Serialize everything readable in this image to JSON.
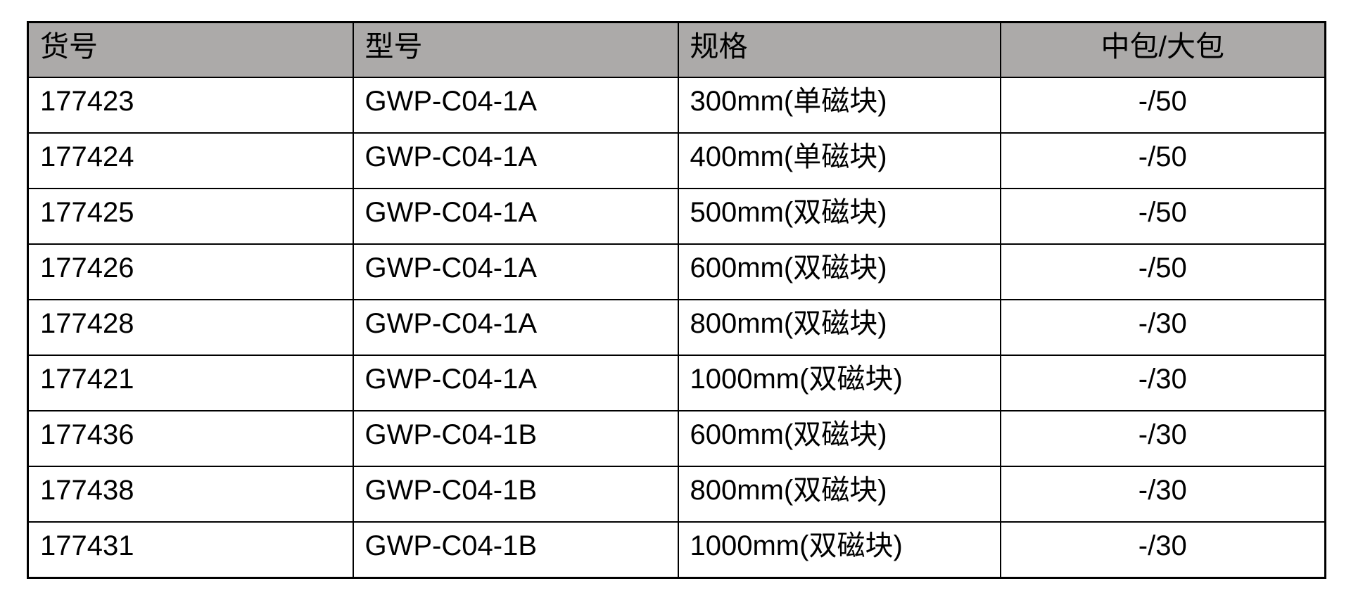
{
  "table": {
    "column_keys": [
      "item-no",
      "model",
      "spec",
      "pack"
    ],
    "headers": [
      "货号",
      "型号",
      "规格",
      "中包/大包"
    ],
    "rows": [
      [
        "177423",
        "GWP-C04-1A",
        "300mm(单磁块)",
        "-/50"
      ],
      [
        "177424",
        "GWP-C04-1A",
        "400mm(单磁块)",
        "-/50"
      ],
      [
        "177425",
        "GWP-C04-1A",
        "500mm(双磁块)",
        "-/50"
      ],
      [
        "177426",
        "GWP-C04-1A",
        "600mm(双磁块)",
        "-/50"
      ],
      [
        "177428",
        "GWP-C04-1A",
        "800mm(双磁块)",
        "-/30"
      ],
      [
        "177421",
        "GWP-C04-1A",
        "1000mm(双磁块)",
        "-/30"
      ],
      [
        "177436",
        "GWP-C04-1B",
        "600mm(双磁块)",
        "-/30"
      ],
      [
        "177438",
        "GWP-C04-1B",
        "800mm(双磁块)",
        "-/30"
      ],
      [
        "177431",
        "GWP-C04-1B",
        "1000mm(双磁块)",
        "-/30"
      ]
    ],
    "colors": {
      "header_bg": "#ACAAA9",
      "border": "#000000",
      "text": "#000000",
      "page_bg": "#FFFFFF"
    }
  }
}
